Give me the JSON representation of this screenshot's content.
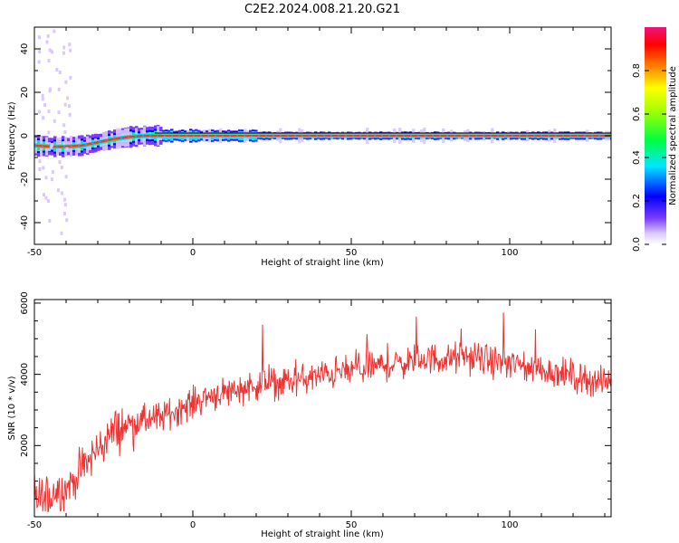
{
  "figure": {
    "title": "C2E2.2024.008.21.20.G21",
    "colors": {
      "axis": "#000000",
      "snr_line": "#ee3333",
      "carrier_band": "#ff3030",
      "colormap": [
        "#ffffff",
        "#dcc8ff",
        "#7a3cff",
        "#0000ff",
        "#00e6ff",
        "#00ff40",
        "#ffff00",
        "#ff8000",
        "#ff0000",
        "#f0147a"
      ]
    }
  },
  "chart_data": [
    {
      "type": "heatmap",
      "name": "spectrogram",
      "xlabel": "Height of straight line (km)",
      "ylabel": "Frequency (Hz)",
      "xlim": [
        -50,
        132
      ],
      "ylim": [
        -50,
        50
      ],
      "xticks": [
        -50,
        0,
        50,
        100
      ],
      "yticks": [
        -40,
        -20,
        0,
        20,
        40
      ],
      "grid": false,
      "colorbar": {
        "label": "Normalized spectral amplitude",
        "range": [
          0,
          1
        ],
        "ticks": [
          "0.0",
          "0.2",
          "0.4",
          "0.6",
          "0.8"
        ]
      },
      "carrier_trace": {
        "x": [
          -50,
          -45,
          -40,
          -35,
          -30,
          -25,
          -20,
          -15,
          -10,
          -5,
          0,
          5,
          10,
          20,
          40,
          60,
          80,
          100,
          120,
          132
        ],
        "frequency": [
          -4.5,
          -5,
          -5,
          -4.5,
          -3,
          -1.5,
          -0.5,
          0,
          0,
          0,
          0,
          0,
          0,
          0,
          0,
          0,
          0,
          0,
          0,
          0
        ]
      }
    },
    {
      "type": "line",
      "name": "snr",
      "xlabel": "Height of straight line (km)",
      "ylabel": "SNR (10 * v/v)",
      "xlim": [
        -50,
        132
      ],
      "ylim": [
        0,
        6100
      ],
      "xticks": [
        -50,
        0,
        50,
        100
      ],
      "yticks": [
        2000,
        4000,
        6000
      ],
      "grid": false,
      "series": [
        {
          "x": [
            -50,
            -45,
            -40,
            -35,
            -30,
            -25,
            -20,
            -15,
            -10,
            -5,
            0,
            5,
            10,
            15,
            20,
            25,
            30,
            35,
            40,
            45,
            50,
            55,
            60,
            65,
            70,
            75,
            80,
            85,
            90,
            95,
            100,
            105,
            110,
            115,
            120,
            125,
            132
          ],
          "values": [
            600,
            550,
            800,
            1300,
            1900,
            2400,
            2600,
            2700,
            2800,
            3000,
            3200,
            3400,
            3500,
            3600,
            3700,
            3750,
            3800,
            3850,
            3950,
            4050,
            4100,
            4200,
            4250,
            4300,
            4400,
            4450,
            4400,
            4500,
            4450,
            4350,
            4300,
            4200,
            4150,
            4050,
            3950,
            3850,
            3750
          ]
        }
      ]
    }
  ]
}
